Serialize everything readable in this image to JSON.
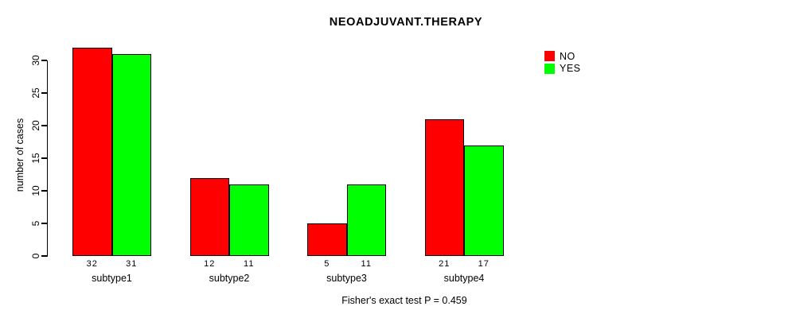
{
  "chart_data": {
    "type": "bar",
    "title": "NEOADJUVANT.THERAPY",
    "ylabel": "number of cases",
    "xlabel": "",
    "categories": [
      "subtype1",
      "subtype2",
      "subtype3",
      "subtype4"
    ],
    "series": [
      {
        "name": "NO",
        "color": "#ff0000",
        "values": [
          32,
          12,
          5,
          21
        ]
      },
      {
        "name": "YES",
        "color": "#00ff00",
        "values": [
          31,
          11,
          11,
          17
        ]
      }
    ],
    "bar_value_labels_shown": true,
    "yticks": [
      0,
      5,
      10,
      15,
      20,
      25,
      30
    ],
    "ylim": [
      0,
      32.8
    ],
    "grid": false,
    "legend_position": "top-right",
    "footnote": "Fisher's exact test P = 0.459"
  },
  "colors": {
    "background": "#ffffff",
    "axis": "#000000",
    "text": "#000000",
    "bar_border": "#000000",
    "no_bar": "#ff0000",
    "yes_bar": "#00ff00"
  }
}
